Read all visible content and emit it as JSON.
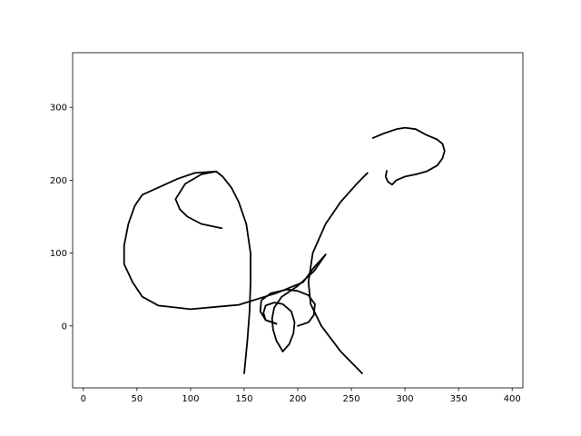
{
  "chart_data": {
    "type": "line",
    "title": "",
    "xlabel": "",
    "ylabel": "",
    "xlim": [
      -10,
      410
    ],
    "ylim": [
      -85,
      375
    ],
    "xticks": [
      0,
      50,
      100,
      150,
      200,
      250,
      300,
      350,
      400
    ],
    "yticks": [
      0,
      100,
      200,
      300
    ],
    "grid": false,
    "legend": "none",
    "line_color": "#000000",
    "series": [
      {
        "points": [
          [
            150,
            -65
          ],
          [
            153,
            -20
          ],
          [
            155,
            20
          ],
          [
            156,
            60
          ],
          [
            156,
            100
          ],
          [
            152,
            140
          ],
          [
            145,
            170
          ],
          [
            138,
            190
          ],
          [
            130,
            205
          ],
          [
            124,
            212
          ]
        ]
      },
      {
        "points": [
          [
            260,
            -65
          ],
          [
            240,
            -35
          ],
          [
            222,
            0
          ],
          [
            212,
            30
          ],
          [
            210,
            60
          ],
          [
            214,
            100
          ],
          [
            226,
            140
          ],
          [
            240,
            170
          ],
          [
            255,
            195
          ],
          [
            265,
            210
          ]
        ]
      },
      {
        "points": [
          [
            129,
            134
          ],
          [
            110,
            140
          ],
          [
            97,
            150
          ],
          [
            90,
            160
          ],
          [
            86,
            174
          ],
          [
            95,
            195
          ],
          [
            110,
            208
          ],
          [
            124,
            212
          ],
          [
            130,
            205
          ]
        ]
      },
      {
        "points": [
          [
            124,
            212
          ],
          [
            104,
            210
          ],
          [
            88,
            202
          ],
          [
            70,
            190
          ],
          [
            55,
            180
          ],
          [
            48,
            165
          ],
          [
            42,
            140
          ],
          [
            38,
            110
          ],
          [
            38,
            85
          ],
          [
            46,
            60
          ],
          [
            55,
            40
          ],
          [
            70,
            28
          ],
          [
            100,
            23
          ],
          [
            145,
            29
          ],
          [
            180,
            45
          ],
          [
            205,
            60
          ],
          [
            215,
            80
          ],
          [
            226,
            98
          ]
        ]
      },
      {
        "points": [
          [
            226,
            98
          ],
          [
            215,
            75
          ],
          [
            200,
            55
          ],
          [
            185,
            40
          ],
          [
            178,
            25
          ],
          [
            176,
            10
          ],
          [
            177,
            -5
          ],
          [
            180,
            -20
          ],
          [
            186,
            -35
          ]
        ]
      },
      {
        "points": [
          [
            186,
            -35
          ],
          [
            192,
            -25
          ],
          [
            196,
            -10
          ],
          [
            197,
            5
          ],
          [
            194,
            20
          ],
          [
            186,
            30
          ],
          [
            178,
            32
          ],
          [
            170,
            28
          ],
          [
            168,
            18
          ],
          [
            170,
            8
          ],
          [
            180,
            3
          ]
        ]
      },
      {
        "points": [
          [
            180,
            3
          ],
          [
            170,
            8
          ],
          [
            165,
            20
          ],
          [
            166,
            35
          ],
          [
            175,
            45
          ],
          [
            190,
            50
          ],
          [
            200,
            48
          ],
          [
            210,
            42
          ],
          [
            216,
            30
          ],
          [
            215,
            15
          ],
          [
            210,
            5
          ],
          [
            200,
            0
          ]
        ]
      },
      {
        "points": [
          [
            270,
            258
          ],
          [
            280,
            264
          ],
          [
            292,
            270
          ],
          [
            300,
            272
          ],
          [
            310,
            270
          ],
          [
            320,
            262
          ],
          [
            330,
            256
          ],
          [
            335,
            250
          ],
          [
            337,
            240
          ],
          [
            335,
            230
          ],
          [
            330,
            220
          ],
          [
            320,
            212
          ],
          [
            310,
            208
          ]
        ]
      },
      {
        "points": [
          [
            310,
            208
          ],
          [
            300,
            205
          ],
          [
            292,
            200
          ],
          [
            288,
            194
          ]
        ]
      },
      {
        "points": [
          [
            288,
            194
          ],
          [
            284,
            198
          ],
          [
            282,
            205
          ],
          [
            283,
            213
          ]
        ]
      }
    ]
  }
}
